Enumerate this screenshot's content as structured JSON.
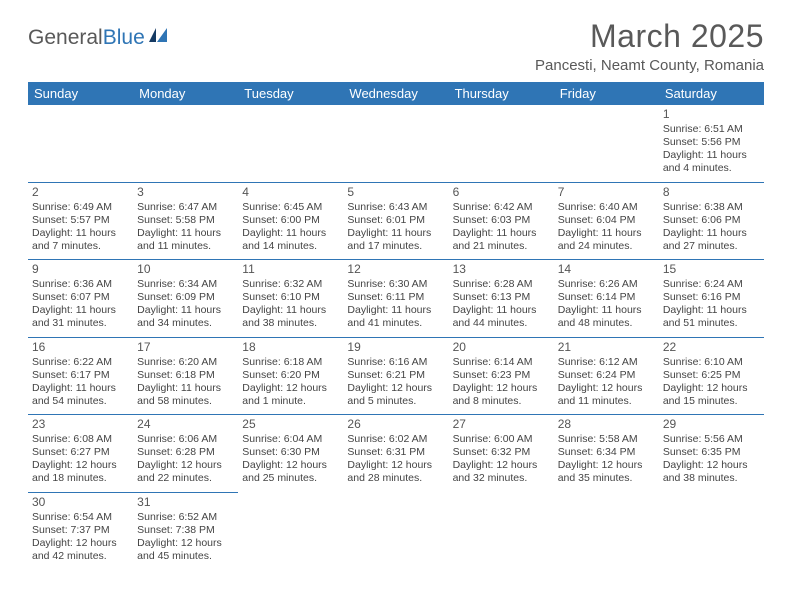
{
  "logo": {
    "text1": "General",
    "text2": "Blue"
  },
  "title": "March 2025",
  "location": "Pancesti, Neamt County, Romania",
  "header_color": "#2f75b5",
  "day_headers": [
    "Sunday",
    "Monday",
    "Tuesday",
    "Wednesday",
    "Thursday",
    "Friday",
    "Saturday"
  ],
  "weeks": [
    [
      null,
      null,
      null,
      null,
      null,
      null,
      {
        "n": "1",
        "sr": "Sunrise: 6:51 AM",
        "ss": "Sunset: 5:56 PM",
        "dl": "Daylight: 11 hours and 4 minutes."
      }
    ],
    [
      {
        "n": "2",
        "sr": "Sunrise: 6:49 AM",
        "ss": "Sunset: 5:57 PM",
        "dl": "Daylight: 11 hours and 7 minutes."
      },
      {
        "n": "3",
        "sr": "Sunrise: 6:47 AM",
        "ss": "Sunset: 5:58 PM",
        "dl": "Daylight: 11 hours and 11 minutes."
      },
      {
        "n": "4",
        "sr": "Sunrise: 6:45 AM",
        "ss": "Sunset: 6:00 PM",
        "dl": "Daylight: 11 hours and 14 minutes."
      },
      {
        "n": "5",
        "sr": "Sunrise: 6:43 AM",
        "ss": "Sunset: 6:01 PM",
        "dl": "Daylight: 11 hours and 17 minutes."
      },
      {
        "n": "6",
        "sr": "Sunrise: 6:42 AM",
        "ss": "Sunset: 6:03 PM",
        "dl": "Daylight: 11 hours and 21 minutes."
      },
      {
        "n": "7",
        "sr": "Sunrise: 6:40 AM",
        "ss": "Sunset: 6:04 PM",
        "dl": "Daylight: 11 hours and 24 minutes."
      },
      {
        "n": "8",
        "sr": "Sunrise: 6:38 AM",
        "ss": "Sunset: 6:06 PM",
        "dl": "Daylight: 11 hours and 27 minutes."
      }
    ],
    [
      {
        "n": "9",
        "sr": "Sunrise: 6:36 AM",
        "ss": "Sunset: 6:07 PM",
        "dl": "Daylight: 11 hours and 31 minutes."
      },
      {
        "n": "10",
        "sr": "Sunrise: 6:34 AM",
        "ss": "Sunset: 6:09 PM",
        "dl": "Daylight: 11 hours and 34 minutes."
      },
      {
        "n": "11",
        "sr": "Sunrise: 6:32 AM",
        "ss": "Sunset: 6:10 PM",
        "dl": "Daylight: 11 hours and 38 minutes."
      },
      {
        "n": "12",
        "sr": "Sunrise: 6:30 AM",
        "ss": "Sunset: 6:11 PM",
        "dl": "Daylight: 11 hours and 41 minutes."
      },
      {
        "n": "13",
        "sr": "Sunrise: 6:28 AM",
        "ss": "Sunset: 6:13 PM",
        "dl": "Daylight: 11 hours and 44 minutes."
      },
      {
        "n": "14",
        "sr": "Sunrise: 6:26 AM",
        "ss": "Sunset: 6:14 PM",
        "dl": "Daylight: 11 hours and 48 minutes."
      },
      {
        "n": "15",
        "sr": "Sunrise: 6:24 AM",
        "ss": "Sunset: 6:16 PM",
        "dl": "Daylight: 11 hours and 51 minutes."
      }
    ],
    [
      {
        "n": "16",
        "sr": "Sunrise: 6:22 AM",
        "ss": "Sunset: 6:17 PM",
        "dl": "Daylight: 11 hours and 54 minutes."
      },
      {
        "n": "17",
        "sr": "Sunrise: 6:20 AM",
        "ss": "Sunset: 6:18 PM",
        "dl": "Daylight: 11 hours and 58 minutes."
      },
      {
        "n": "18",
        "sr": "Sunrise: 6:18 AM",
        "ss": "Sunset: 6:20 PM",
        "dl": "Daylight: 12 hours and 1 minute."
      },
      {
        "n": "19",
        "sr": "Sunrise: 6:16 AM",
        "ss": "Sunset: 6:21 PM",
        "dl": "Daylight: 12 hours and 5 minutes."
      },
      {
        "n": "20",
        "sr": "Sunrise: 6:14 AM",
        "ss": "Sunset: 6:23 PM",
        "dl": "Daylight: 12 hours and 8 minutes."
      },
      {
        "n": "21",
        "sr": "Sunrise: 6:12 AM",
        "ss": "Sunset: 6:24 PM",
        "dl": "Daylight: 12 hours and 11 minutes."
      },
      {
        "n": "22",
        "sr": "Sunrise: 6:10 AM",
        "ss": "Sunset: 6:25 PM",
        "dl": "Daylight: 12 hours and 15 minutes."
      }
    ],
    [
      {
        "n": "23",
        "sr": "Sunrise: 6:08 AM",
        "ss": "Sunset: 6:27 PM",
        "dl": "Daylight: 12 hours and 18 minutes."
      },
      {
        "n": "24",
        "sr": "Sunrise: 6:06 AM",
        "ss": "Sunset: 6:28 PM",
        "dl": "Daylight: 12 hours and 22 minutes."
      },
      {
        "n": "25",
        "sr": "Sunrise: 6:04 AM",
        "ss": "Sunset: 6:30 PM",
        "dl": "Daylight: 12 hours and 25 minutes."
      },
      {
        "n": "26",
        "sr": "Sunrise: 6:02 AM",
        "ss": "Sunset: 6:31 PM",
        "dl": "Daylight: 12 hours and 28 minutes."
      },
      {
        "n": "27",
        "sr": "Sunrise: 6:00 AM",
        "ss": "Sunset: 6:32 PM",
        "dl": "Daylight: 12 hours and 32 minutes."
      },
      {
        "n": "28",
        "sr": "Sunrise: 5:58 AM",
        "ss": "Sunset: 6:34 PM",
        "dl": "Daylight: 12 hours and 35 minutes."
      },
      {
        "n": "29",
        "sr": "Sunrise: 5:56 AM",
        "ss": "Sunset: 6:35 PM",
        "dl": "Daylight: 12 hours and 38 minutes."
      }
    ],
    [
      {
        "n": "30",
        "sr": "Sunrise: 6:54 AM",
        "ss": "Sunset: 7:37 PM",
        "dl": "Daylight: 12 hours and 42 minutes."
      },
      {
        "n": "31",
        "sr": "Sunrise: 6:52 AM",
        "ss": "Sunset: 7:38 PM",
        "dl": "Daylight: 12 hours and 45 minutes."
      },
      null,
      null,
      null,
      null,
      null
    ]
  ]
}
